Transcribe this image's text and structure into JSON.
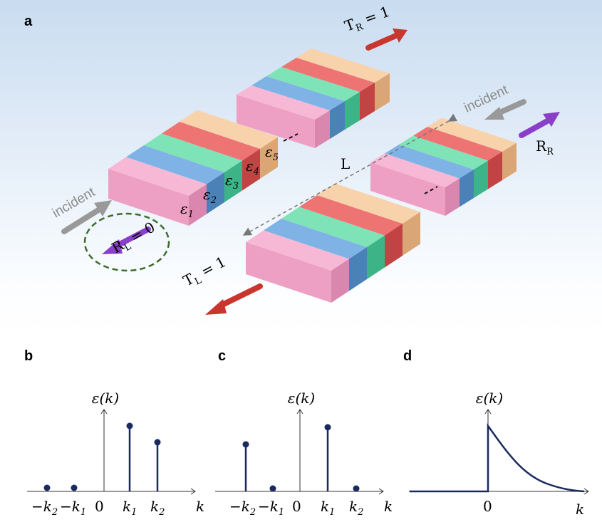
{
  "panel_a": {
    "label": "a",
    "t_r": {
      "base": "T",
      "sub": "R",
      "rest": " = 1"
    },
    "incident_right": "incident",
    "r_r": {
      "base": "R",
      "sub": "R"
    },
    "distance": "L",
    "epsilons": [
      {
        "base": "ε",
        "sub": "1"
      },
      {
        "base": "ε",
        "sub": "2"
      },
      {
        "base": "ε",
        "sub": "3"
      },
      {
        "base": "ε",
        "sub": "4"
      },
      {
        "base": "ε",
        "sub": "5"
      }
    ],
    "incident_left": "incident",
    "r_l": {
      "base": "R",
      "sub": "L",
      "rest": " = 0"
    },
    "t_l": {
      "base": "T",
      "sub": "L",
      "rest": " = 1"
    }
  },
  "panel_b": {
    "label": "b",
    "y_label": "ε(k)",
    "x_label": "k",
    "ticks": [
      {
        "base": "−k",
        "sub": "2"
      },
      {
        "base": "−k",
        "sub": "1"
      },
      {
        "base": "0"
      },
      {
        "base": "k",
        "sub": "1"
      },
      {
        "base": "k",
        "sub": "2"
      }
    ]
  },
  "panel_c": {
    "label": "c",
    "y_label": "ε(k)",
    "x_label": "k",
    "ticks": [
      {
        "base": "−k",
        "sub": "2"
      },
      {
        "base": "−k",
        "sub": "1"
      },
      {
        "base": "0"
      },
      {
        "base": "k",
        "sub": "1"
      },
      {
        "base": "k",
        "sub": "2"
      }
    ]
  },
  "panel_d": {
    "label": "d",
    "y_label": "ε(k)",
    "x_label": "k",
    "zero": "0"
  }
}
